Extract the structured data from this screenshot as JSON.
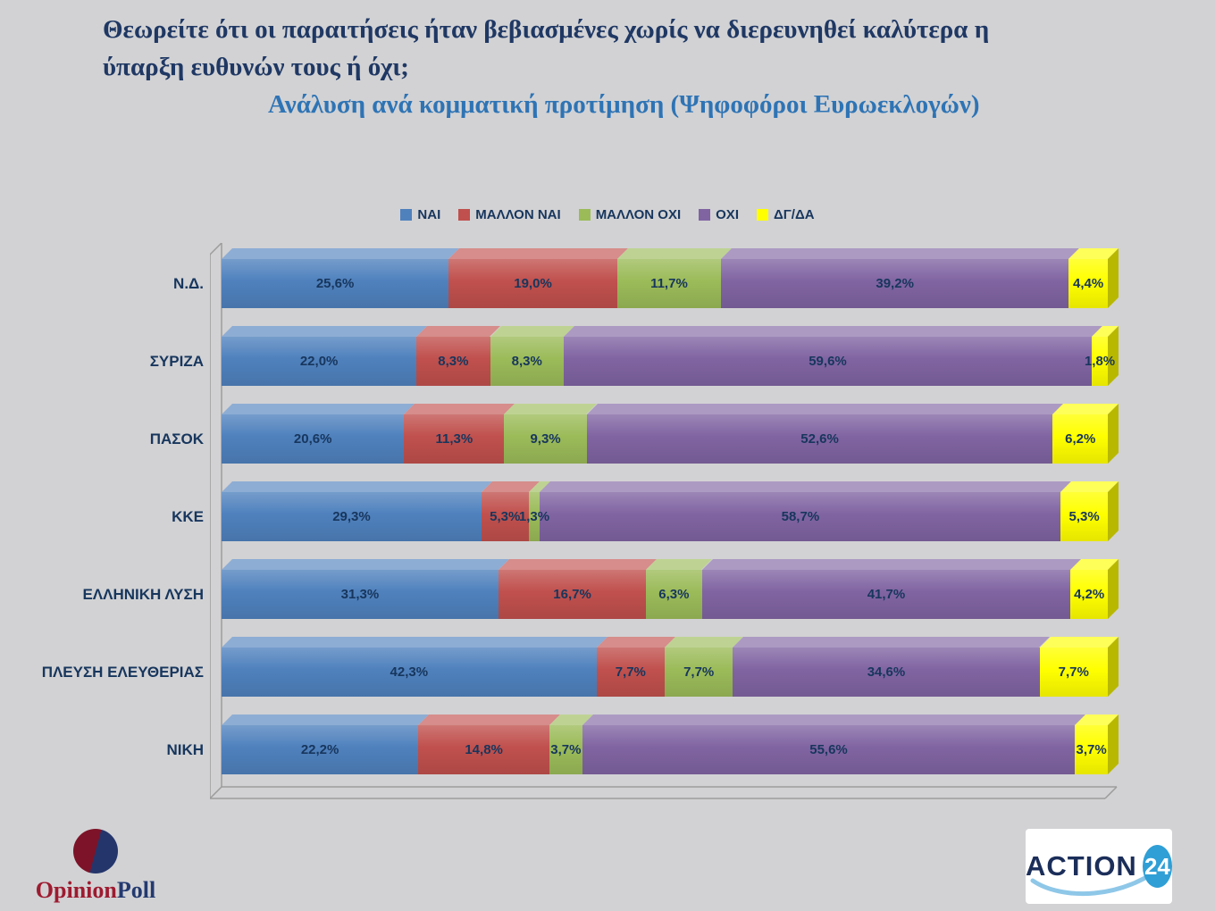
{
  "slide": {
    "title_line1": "Θεωρείτε ότι οι παραιτήσεις ήταν βεβιασμένες χωρίς να διερευνηθεί καλύτερα η",
    "title_line2": "ύπαρξη ευθυνών τους ή όχι;",
    "subtitle": "Ανάλυση ανά κομματική προτίμηση (Ψηφοφόροι Ευρωεκλογών)"
  },
  "chart_data": {
    "type": "bar",
    "orientation": "horizontal",
    "stacked": true,
    "title": "Θεωρείτε ότι οι παραιτήσεις ήταν βεβιασμένες χωρίς να διερευνηθεί καλύτερα η ύπαρξη ευθυνών τους ή όχι;",
    "subtitle": "Ανάλυση ανά κομματική προτίμηση (Ψηφοφόροι Ευρωεκλογών)",
    "legend_position": "top",
    "xlim": [
      0,
      100
    ],
    "value_format": "percent-comma-1dp",
    "categories": [
      "Ν.Δ.",
      "ΣΥΡΙΖΑ",
      "ΠΑΣΟΚ",
      "ΚΚΕ",
      "ΕΛΛΗΝΙΚΗ ΛΥΣΗ",
      "ΠΛΕΥΣΗ ΕΛΕΥΘΕΡΙΑΣ",
      "ΝΙΚΗ"
    ],
    "series": [
      {
        "name": "ΝΑΙ",
        "color": "#4f81bd",
        "values": [
          25.6,
          22.0,
          20.6,
          29.3,
          31.3,
          42.3,
          22.2
        ]
      },
      {
        "name": "ΜΑΛΛΟΝ ΝΑΙ",
        "color": "#c0504d",
        "values": [
          19.0,
          8.3,
          11.3,
          5.3,
          16.7,
          7.7,
          14.8
        ]
      },
      {
        "name": "ΜΑΛΛΟΝ ΟΧΙ",
        "color": "#9bbb59",
        "values": [
          11.7,
          8.3,
          9.3,
          1.3,
          6.3,
          7.7,
          3.7
        ]
      },
      {
        "name": "ΟΧΙ",
        "color": "#8064a2",
        "values": [
          39.2,
          59.6,
          52.6,
          58.7,
          41.7,
          34.6,
          55.6
        ]
      },
      {
        "name": "ΔΓ/ΔΑ",
        "color": "#ffff00",
        "values": [
          4.4,
          1.8,
          6.2,
          5.3,
          4.2,
          7.7,
          3.7
        ]
      }
    ]
  },
  "footer": {
    "opinionpoll": {
      "part1": "Opinion",
      "part2": "Poll"
    },
    "action24": {
      "text": "ACTION",
      "number": "24"
    }
  },
  "colors": {
    "background": "#d2d2d4",
    "title": "#1f3864",
    "subtitle": "#2e74b5",
    "label_text": "#17365d"
  }
}
